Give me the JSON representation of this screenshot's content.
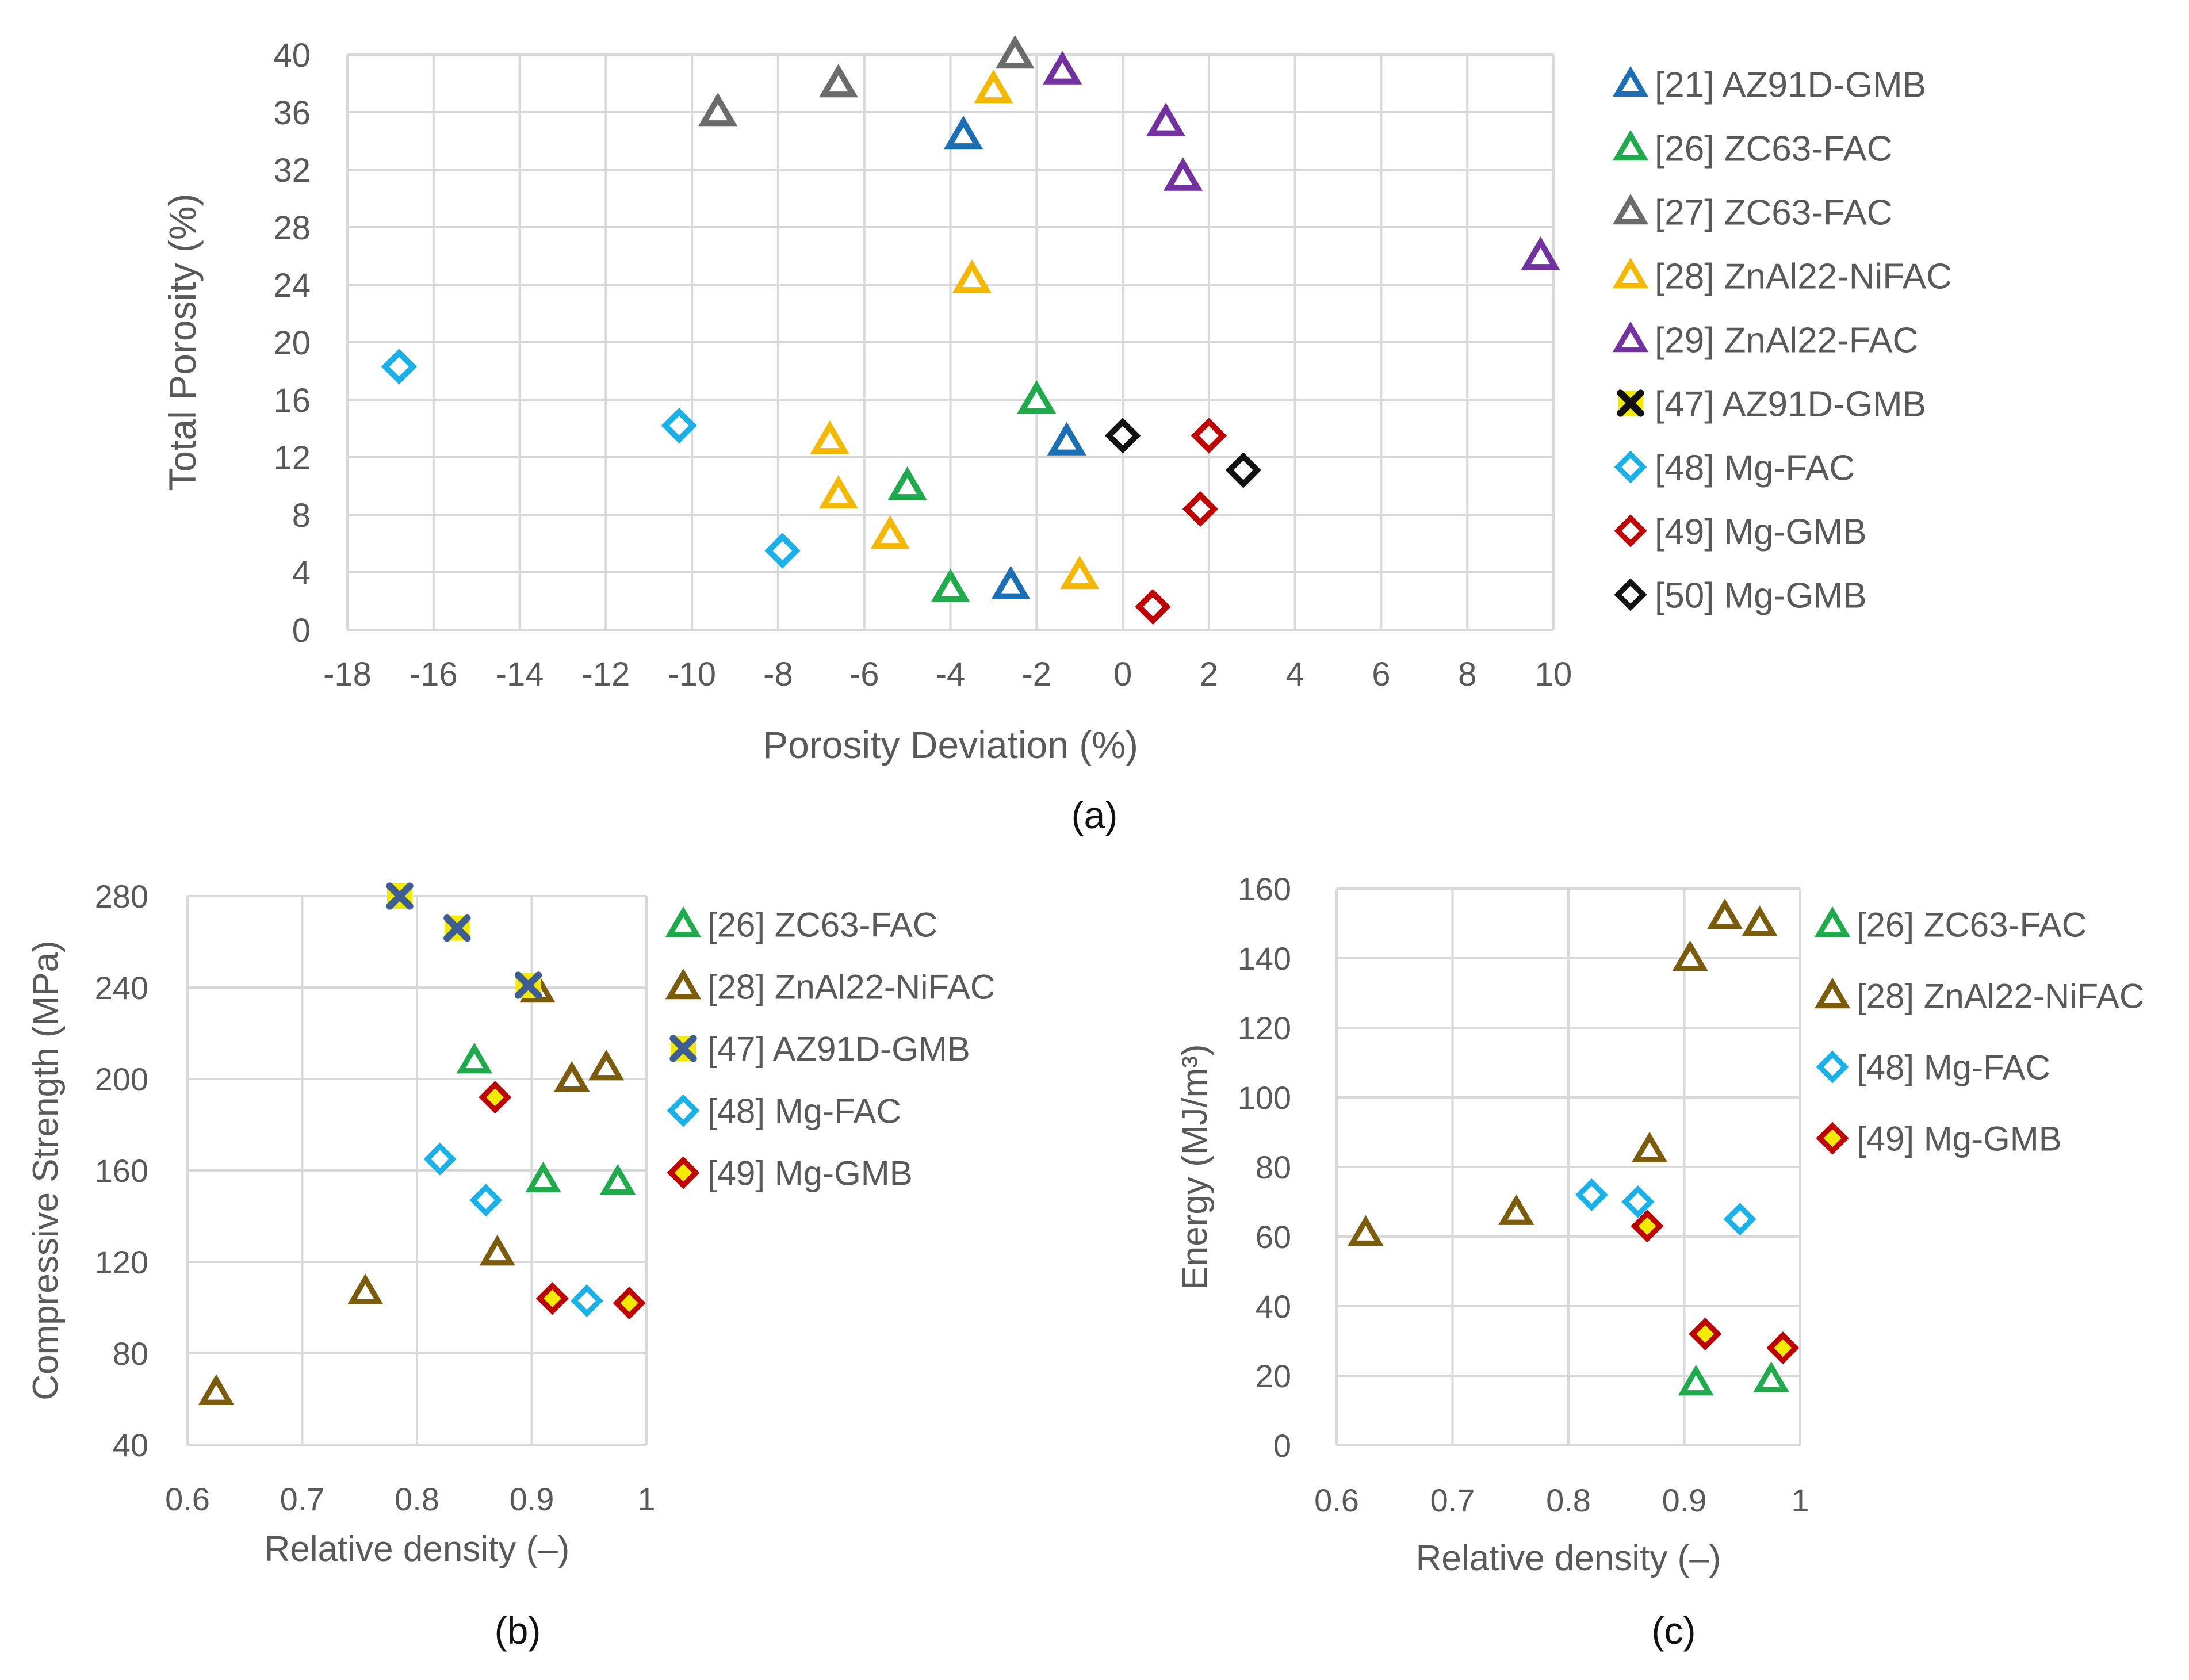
{
  "chart_data": [
    {
      "id": "a",
      "type": "scatter",
      "caption": "(a)",
      "xlabel": "Porosity Deviation (%)",
      "ylabel": "Total Porosity (%)",
      "xlim": [
        -18,
        10
      ],
      "ylim": [
        0,
        40
      ],
      "xticks": [
        -18,
        -16,
        -14,
        -12,
        -10,
        -8,
        -6,
        -4,
        -2,
        0,
        2,
        4,
        6,
        8,
        10
      ],
      "yticks": [
        0,
        4,
        8,
        12,
        16,
        20,
        24,
        28,
        32,
        36,
        40
      ],
      "xtick_labels": [
        "-18",
        "-16",
        "-14",
        "-12",
        "-10",
        "-8",
        "-6",
        "-4",
        "-2",
        "0",
        "2",
        "4",
        "6",
        "8",
        "10"
      ],
      "ytick_labels": [
        "0",
        "4",
        "8",
        "12",
        "16",
        "20",
        "24",
        "28",
        "32",
        "36",
        "40"
      ],
      "grid": true,
      "legend_position": "right",
      "series": [
        {
          "name": "[21] AZ91D-GMB",
          "marker": "triangle",
          "color": "#1a6fb5",
          "fill": "none",
          "points": [
            [
              -3.7,
              34.4
            ],
            [
              -2.6,
              3.1
            ],
            [
              -1.3,
              13.1
            ]
          ]
        },
        {
          "name": "[26] ZC63-FAC",
          "marker": "triangle",
          "color": "#1faa4b",
          "fill": "none",
          "points": [
            [
              -2.0,
              16.0
            ],
            [
              -5.0,
              10.0
            ],
            [
              -4.0,
              2.9
            ]
          ]
        },
        {
          "name": "[27] ZC63-FAC",
          "marker": "triangle",
          "color": "#6b6b6b",
          "fill": "none",
          "points": [
            [
              -9.4,
              36.0
            ],
            [
              -6.6,
              38.0
            ],
            [
              -2.5,
              40.0
            ]
          ]
        },
        {
          "name": "[28] ZnAl22-NiFAC",
          "marker": "triangle",
          "color": "#f5b800",
          "fill": "none",
          "points": [
            [
              -3.0,
              37.6
            ],
            [
              -3.5,
              24.4
            ],
            [
              -6.8,
              13.2
            ],
            [
              -6.6,
              9.4
            ],
            [
              -5.4,
              6.6
            ],
            [
              -1.0,
              3.8
            ]
          ]
        },
        {
          "name": "[29] ZnAl22-FAC",
          "marker": "triangle",
          "color": "#7230a0",
          "fill": "none",
          "points": [
            [
              -1.4,
              38.9
            ],
            [
              1.0,
              35.3
            ],
            [
              1.4,
              31.5
            ],
            [
              9.7,
              26.0
            ]
          ]
        },
        {
          "name": "[47] AZ91D-GMB",
          "marker": "cross",
          "color": "#111111",
          "fill": "#f2ea00",
          "points": []
        },
        {
          "name": "[48] Mg-FAC",
          "marker": "diamond",
          "color": "#1ab0e8",
          "fill": "none",
          "points": [
            [
              -16.8,
              18.3
            ],
            [
              -10.3,
              14.2
            ],
            [
              -7.9,
              5.5
            ]
          ]
        },
        {
          "name": "[49] Mg-GMB",
          "marker": "diamond",
          "color": "#c00000",
          "fill": "none",
          "points": [
            [
              2.0,
              13.5
            ],
            [
              1.8,
              8.4
            ],
            [
              0.7,
              1.6
            ]
          ]
        },
        {
          "name": "[50] Mg-GMB",
          "marker": "diamond",
          "color": "#111111",
          "fill": "none",
          "points": [
            [
              0.0,
              13.5
            ],
            [
              2.8,
              11.1
            ]
          ]
        }
      ]
    },
    {
      "id": "b",
      "type": "scatter",
      "caption": "(b)",
      "xlabel": "Relative density (–)",
      "ylabel": "Compressive Strength (MPa)",
      "xlim": [
        0.6,
        1
      ],
      "ylim": [
        40,
        280
      ],
      "xticks": [
        0.6,
        0.7,
        0.8,
        0.9,
        1
      ],
      "yticks": [
        40,
        80,
        120,
        160,
        200,
        240,
        280
      ],
      "xtick_labels": [
        "0.6",
        "0.7",
        "0.8",
        "0.9",
        "1"
      ],
      "ytick_labels": [
        "40",
        "80",
        "120",
        "160",
        "200",
        "240",
        "280"
      ],
      "grid": true,
      "legend_position": "right",
      "series": [
        {
          "name": "[26] ZC63-FAC",
          "marker": "triangle",
          "color": "#1faa4b",
          "fill": "none",
          "points": [
            [
              0.85,
              208
            ],
            [
              0.91,
              156
            ],
            [
              0.975,
              155
            ]
          ]
        },
        {
          "name": "[28] ZnAl22-NiFAC",
          "marker": "triangle",
          "color": "#7a5c0c",
          "fill": "none",
          "points": [
            [
              0.625,
              63
            ],
            [
              0.755,
              107
            ],
            [
              0.87,
              124
            ],
            [
              0.905,
              239
            ],
            [
              0.935,
              200
            ],
            [
              0.965,
              205
            ]
          ]
        },
        {
          "name": "[47] AZ91D-GMB",
          "marker": "cross",
          "color": "#3d5d93",
          "fill": "#f2ea00",
          "points": [
            [
              0.785,
              280
            ],
            [
              0.835,
              266
            ],
            [
              0.897,
              241
            ]
          ]
        },
        {
          "name": "[48] Mg-FAC",
          "marker": "diamond",
          "color": "#1ab0e8",
          "fill": "none",
          "points": [
            [
              0.82,
              165
            ],
            [
              0.86,
              147
            ],
            [
              0.948,
              103
            ]
          ]
        },
        {
          "name": "[49] Mg-GMB",
          "marker": "diamond",
          "color": "#c00000",
          "fill": "#f2ea00",
          "points": [
            [
              0.868,
              192
            ],
            [
              0.918,
              104
            ],
            [
              0.985,
              102
            ]
          ]
        }
      ]
    },
    {
      "id": "c",
      "type": "scatter",
      "caption": "(c)",
      "xlabel": "Relative density (–)",
      "ylabel": "Energy (MJ/m³)",
      "xlim": [
        0.6,
        1
      ],
      "ylim": [
        0,
        160
      ],
      "xticks": [
        0.6,
        0.7,
        0.8,
        0.9,
        1
      ],
      "yticks": [
        0,
        20,
        40,
        60,
        80,
        100,
        120,
        140,
        160
      ],
      "xtick_labels": [
        "0.6",
        "0.7",
        "0.8",
        "0.9",
        "1"
      ],
      "ytick_labels": [
        "0",
        "20",
        "40",
        "60",
        "80",
        "100",
        "120",
        "140",
        "160"
      ],
      "grid": true,
      "legend_position": "right",
      "series": [
        {
          "name": "[26] ZC63-FAC",
          "marker": "triangle",
          "color": "#1faa4b",
          "fill": "none",
          "points": [
            [
              0.91,
              18
            ],
            [
              0.975,
              19
            ]
          ]
        },
        {
          "name": "[28] ZnAl22-NiFAC",
          "marker": "triangle",
          "color": "#7a5c0c",
          "fill": "none",
          "points": [
            [
              0.625,
              61
            ],
            [
              0.755,
              67
            ],
            [
              0.87,
              85
            ],
            [
              0.905,
              140
            ],
            [
              0.935,
              152
            ],
            [
              0.965,
              150
            ]
          ]
        },
        {
          "name": "[48] Mg-FAC",
          "marker": "diamond",
          "color": "#1ab0e8",
          "fill": "none",
          "points": [
            [
              0.82,
              72
            ],
            [
              0.86,
              70
            ],
            [
              0.948,
              65
            ]
          ]
        },
        {
          "name": "[49] Mg-GMB",
          "marker": "diamond",
          "color": "#c00000",
          "fill": "#f2ea00",
          "points": [
            [
              0.868,
              63
            ],
            [
              0.918,
              32
            ],
            [
              0.985,
              28
            ]
          ]
        }
      ]
    }
  ]
}
